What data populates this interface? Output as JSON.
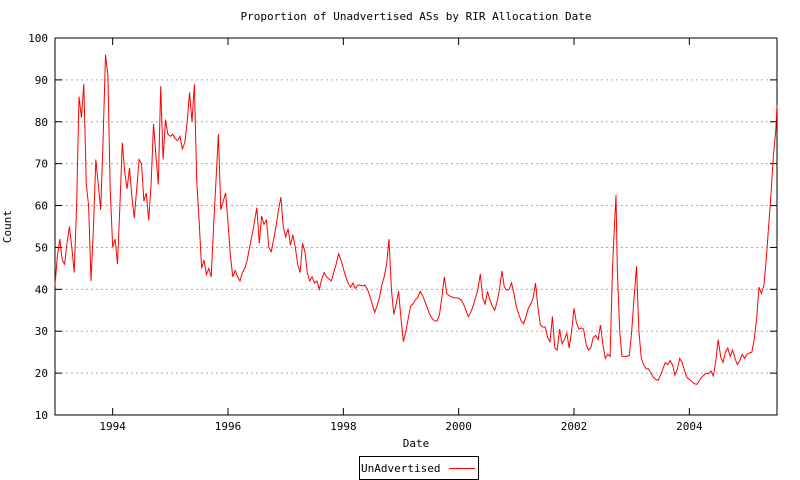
{
  "chart_data": {
    "type": "line",
    "title": "Proportion of Unadvertised ASs by RIR Allocation Date",
    "xlabel": "Date",
    "ylabel": "Count",
    "xlim": [
      1993.0,
      2005.52
    ],
    "ylim": [
      10,
      100
    ],
    "xticks": [
      1994,
      1996,
      1998,
      2000,
      2002,
      2004
    ],
    "yticks": [
      10,
      20,
      30,
      40,
      50,
      60,
      70,
      80,
      90,
      100
    ],
    "grid": "horizontal-dashed",
    "grid_color": "#aaaaaa",
    "axis_color": "#000000",
    "legend_position": "bottom-center",
    "series": [
      {
        "name": "UnAdvertised",
        "color": "#ff0000",
        "points": [
          [
            1993.0,
            41
          ],
          [
            1993.042,
            48
          ],
          [
            1993.083,
            52
          ],
          [
            1993.125,
            47
          ],
          [
            1993.167,
            46
          ],
          [
            1993.208,
            51
          ],
          [
            1993.25,
            55
          ],
          [
            1993.292,
            50
          ],
          [
            1993.333,
            44
          ],
          [
            1993.375,
            60
          ],
          [
            1993.417,
            86
          ],
          [
            1993.458,
            81
          ],
          [
            1993.5,
            89
          ],
          [
            1993.542,
            65
          ],
          [
            1993.583,
            60
          ],
          [
            1993.625,
            42
          ],
          [
            1993.667,
            55
          ],
          [
            1993.708,
            71
          ],
          [
            1993.75,
            65
          ],
          [
            1993.792,
            59
          ],
          [
            1993.833,
            75
          ],
          [
            1993.875,
            96
          ],
          [
            1993.917,
            91
          ],
          [
            1993.958,
            64
          ],
          [
            1994.0,
            50
          ],
          [
            1994.042,
            52
          ],
          [
            1994.083,
            46
          ],
          [
            1994.125,
            60
          ],
          [
            1994.167,
            75
          ],
          [
            1994.208,
            68
          ],
          [
            1994.25,
            64
          ],
          [
            1994.292,
            69
          ],
          [
            1994.333,
            62
          ],
          [
            1994.375,
            57
          ],
          [
            1994.417,
            64
          ],
          [
            1994.458,
            71
          ],
          [
            1994.5,
            70
          ],
          [
            1994.542,
            61
          ],
          [
            1994.583,
            63
          ],
          [
            1994.625,
            56.5
          ],
          [
            1994.667,
            65
          ],
          [
            1994.708,
            79.5
          ],
          [
            1994.75,
            72
          ],
          [
            1994.792,
            65
          ],
          [
            1994.833,
            88.5
          ],
          [
            1994.875,
            71
          ],
          [
            1994.917,
            80.5
          ],
          [
            1994.958,
            77
          ],
          [
            1995.0,
            76.5
          ],
          [
            1995.042,
            77
          ],
          [
            1995.083,
            76
          ],
          [
            1995.125,
            75.5
          ],
          [
            1995.167,
            76.5
          ],
          [
            1995.208,
            73.5
          ],
          [
            1995.25,
            75
          ],
          [
            1995.292,
            80
          ],
          [
            1995.333,
            87
          ],
          [
            1995.375,
            80
          ],
          [
            1995.417,
            89
          ],
          [
            1995.458,
            66
          ],
          [
            1995.5,
            56
          ],
          [
            1995.542,
            45
          ],
          [
            1995.583,
            47
          ],
          [
            1995.625,
            43.5
          ],
          [
            1995.667,
            45
          ],
          [
            1995.708,
            43
          ],
          [
            1995.75,
            55
          ],
          [
            1995.792,
            66
          ],
          [
            1995.833,
            77
          ],
          [
            1995.875,
            59
          ],
          [
            1995.917,
            61
          ],
          [
            1995.958,
            63
          ],
          [
            1996.0,
            56
          ],
          [
            1996.042,
            48
          ],
          [
            1996.083,
            43
          ],
          [
            1996.125,
            44.5
          ],
          [
            1996.167,
            43
          ],
          [
            1996.208,
            42
          ],
          [
            1996.25,
            44
          ],
          [
            1996.292,
            45
          ],
          [
            1996.333,
            47
          ],
          [
            1996.375,
            50
          ],
          [
            1996.417,
            53
          ],
          [
            1996.458,
            56
          ],
          [
            1996.5,
            59.5
          ],
          [
            1996.542,
            51
          ],
          [
            1996.583,
            57.5
          ],
          [
            1996.625,
            55.5
          ],
          [
            1996.667,
            56.5
          ],
          [
            1996.708,
            50
          ],
          [
            1996.75,
            49
          ],
          [
            1996.792,
            52
          ],
          [
            1996.833,
            55
          ],
          [
            1996.875,
            59
          ],
          [
            1996.917,
            62
          ],
          [
            1996.958,
            55
          ],
          [
            1997.0,
            52.5
          ],
          [
            1997.042,
            54.5
          ],
          [
            1997.083,
            50.5
          ],
          [
            1997.125,
            53
          ],
          [
            1997.167,
            50
          ],
          [
            1997.208,
            46
          ],
          [
            1997.25,
            44
          ],
          [
            1997.292,
            51
          ],
          [
            1997.333,
            49
          ],
          [
            1997.375,
            44
          ],
          [
            1997.417,
            42
          ],
          [
            1997.458,
            43
          ],
          [
            1997.5,
            41.5
          ],
          [
            1997.542,
            42
          ],
          [
            1997.583,
            40
          ],
          [
            1997.625,
            42.5
          ],
          [
            1997.667,
            44
          ],
          [
            1997.708,
            43
          ],
          [
            1997.75,
            42.5
          ],
          [
            1997.792,
            42
          ],
          [
            1997.833,
            44
          ],
          [
            1997.875,
            46
          ],
          [
            1997.917,
            48.5
          ],
          [
            1997.958,
            47
          ],
          [
            1998.0,
            45
          ],
          [
            1998.042,
            43
          ],
          [
            1998.083,
            41.5
          ],
          [
            1998.125,
            40.5
          ],
          [
            1998.167,
            41.5
          ],
          [
            1998.208,
            40.2
          ],
          [
            1998.25,
            41
          ],
          [
            1998.292,
            41
          ],
          [
            1998.333,
            40.8
          ],
          [
            1998.375,
            41
          ],
          [
            1998.417,
            40
          ],
          [
            1998.458,
            38.5
          ],
          [
            1998.5,
            36.5
          ],
          [
            1998.542,
            34.5
          ],
          [
            1998.583,
            36
          ],
          [
            1998.625,
            38
          ],
          [
            1998.667,
            41
          ],
          [
            1998.708,
            43
          ],
          [
            1998.75,
            46
          ],
          [
            1998.792,
            52
          ],
          [
            1998.833,
            40
          ],
          [
            1998.875,
            34
          ],
          [
            1998.917,
            36.5
          ],
          [
            1998.958,
            39.5
          ],
          [
            1999.0,
            33
          ],
          [
            1999.042,
            27.5
          ],
          [
            1999.083,
            30
          ],
          [
            1999.125,
            33
          ],
          [
            1999.167,
            36
          ],
          [
            1999.208,
            36.5
          ],
          [
            1999.25,
            37.5
          ],
          [
            1999.292,
            38
          ],
          [
            1999.333,
            39.5
          ],
          [
            1999.375,
            38.5
          ],
          [
            1999.417,
            37
          ],
          [
            1999.458,
            35.5
          ],
          [
            1999.5,
            34
          ],
          [
            1999.542,
            33
          ],
          [
            1999.583,
            32.5
          ],
          [
            1999.625,
            32.4
          ],
          [
            1999.667,
            34
          ],
          [
            1999.708,
            38
          ],
          [
            1999.75,
            43
          ],
          [
            1999.792,
            39
          ],
          [
            1999.833,
            38.5
          ],
          [
            1999.875,
            38.2
          ],
          [
            1999.917,
            38
          ],
          [
            1999.958,
            38
          ],
          [
            2000.0,
            37.8
          ],
          [
            2000.042,
            37.5
          ],
          [
            2000.083,
            36.5
          ],
          [
            2000.125,
            35
          ],
          [
            2000.167,
            33.5
          ],
          [
            2000.208,
            34.5
          ],
          [
            2000.25,
            36
          ],
          [
            2000.292,
            38
          ],
          [
            2000.333,
            40
          ],
          [
            2000.375,
            43.7
          ],
          [
            2000.417,
            38
          ],
          [
            2000.458,
            36.5
          ],
          [
            2000.5,
            39.5
          ],
          [
            2000.542,
            37.5
          ],
          [
            2000.583,
            36
          ],
          [
            2000.625,
            35
          ],
          [
            2000.667,
            37
          ],
          [
            2000.708,
            40
          ],
          [
            2000.75,
            44.4
          ],
          [
            2000.792,
            40.5
          ],
          [
            2000.833,
            39.8
          ],
          [
            2000.875,
            40
          ],
          [
            2000.917,
            41.5
          ],
          [
            2000.958,
            39
          ],
          [
            2001.0,
            36
          ],
          [
            2001.042,
            34
          ],
          [
            2001.083,
            32.5
          ],
          [
            2001.125,
            31.8
          ],
          [
            2001.167,
            33.5
          ],
          [
            2001.208,
            35.5
          ],
          [
            2001.25,
            36.5
          ],
          [
            2001.292,
            38
          ],
          [
            2001.333,
            41.5
          ],
          [
            2001.375,
            35.5
          ],
          [
            2001.417,
            31.5
          ],
          [
            2001.458,
            31
          ],
          [
            2001.5,
            31
          ],
          [
            2001.542,
            28.5
          ],
          [
            2001.583,
            27.5
          ],
          [
            2001.625,
            33.5
          ],
          [
            2001.667,
            26
          ],
          [
            2001.708,
            25.5
          ],
          [
            2001.75,
            30.5
          ],
          [
            2001.792,
            27
          ],
          [
            2001.833,
            28
          ],
          [
            2001.875,
            29.5
          ],
          [
            2001.917,
            26
          ],
          [
            2001.958,
            30
          ],
          [
            2002.0,
            35.5
          ],
          [
            2002.042,
            32
          ],
          [
            2002.083,
            30.5
          ],
          [
            2002.125,
            30.8
          ],
          [
            2002.167,
            30.5
          ],
          [
            2002.208,
            27
          ],
          [
            2002.25,
            25.5
          ],
          [
            2002.292,
            26
          ],
          [
            2002.333,
            28.5
          ],
          [
            2002.375,
            29
          ],
          [
            2002.417,
            28
          ],
          [
            2002.458,
            31.5
          ],
          [
            2002.5,
            27
          ],
          [
            2002.542,
            23.5
          ],
          [
            2002.583,
            24.5
          ],
          [
            2002.625,
            24
          ],
          [
            2002.667,
            45
          ],
          [
            2002.708,
            57
          ],
          [
            2002.729,
            62.5
          ],
          [
            2002.75,
            45
          ],
          [
            2002.792,
            30
          ],
          [
            2002.833,
            24
          ],
          [
            2002.875,
            24
          ],
          [
            2002.917,
            24
          ],
          [
            2002.958,
            24.2
          ],
          [
            2003.0,
            30
          ],
          [
            2003.042,
            38
          ],
          [
            2003.083,
            45.5
          ],
          [
            2003.125,
            30
          ],
          [
            2003.167,
            23.5
          ],
          [
            2003.208,
            22
          ],
          [
            2003.25,
            21
          ],
          [
            2003.292,
            21
          ],
          [
            2003.333,
            20
          ],
          [
            2003.375,
            19
          ],
          [
            2003.417,
            18.5
          ],
          [
            2003.458,
            18.3
          ],
          [
            2003.5,
            19.5
          ],
          [
            2003.542,
            21
          ],
          [
            2003.583,
            22.5
          ],
          [
            2003.625,
            22
          ],
          [
            2003.667,
            23
          ],
          [
            2003.708,
            22
          ],
          [
            2003.75,
            19.5
          ],
          [
            2003.792,
            21
          ],
          [
            2003.833,
            23.5
          ],
          [
            2003.875,
            22.5
          ],
          [
            2003.917,
            20.5
          ],
          [
            2003.958,
            19
          ],
          [
            2004.0,
            18.5
          ],
          [
            2004.042,
            18
          ],
          [
            2004.083,
            17.5
          ],
          [
            2004.125,
            17.3
          ],
          [
            2004.167,
            18
          ],
          [
            2004.208,
            19
          ],
          [
            2004.25,
            19.5
          ],
          [
            2004.292,
            20
          ],
          [
            2004.333,
            19.8
          ],
          [
            2004.375,
            20.5
          ],
          [
            2004.417,
            19.3
          ],
          [
            2004.458,
            23
          ],
          [
            2004.5,
            28
          ],
          [
            2004.542,
            24
          ],
          [
            2004.583,
            22.5
          ],
          [
            2004.625,
            25
          ],
          [
            2004.667,
            26
          ],
          [
            2004.708,
            24
          ],
          [
            2004.75,
            25.5
          ],
          [
            2004.792,
            23.5
          ],
          [
            2004.833,
            22
          ],
          [
            2004.875,
            23
          ],
          [
            2004.917,
            24.5
          ],
          [
            2004.958,
            23.5
          ],
          [
            2005.0,
            24.5
          ],
          [
            2005.042,
            24.8
          ],
          [
            2005.083,
            25
          ],
          [
            2005.125,
            28
          ],
          [
            2005.167,
            33
          ],
          [
            2005.208,
            40.5
          ],
          [
            2005.25,
            39
          ],
          [
            2005.292,
            41
          ],
          [
            2005.333,
            47
          ],
          [
            2005.375,
            55
          ],
          [
            2005.417,
            63
          ],
          [
            2005.458,
            72
          ],
          [
            2005.5,
            78
          ],
          [
            2005.52,
            84
          ]
        ]
      }
    ]
  }
}
